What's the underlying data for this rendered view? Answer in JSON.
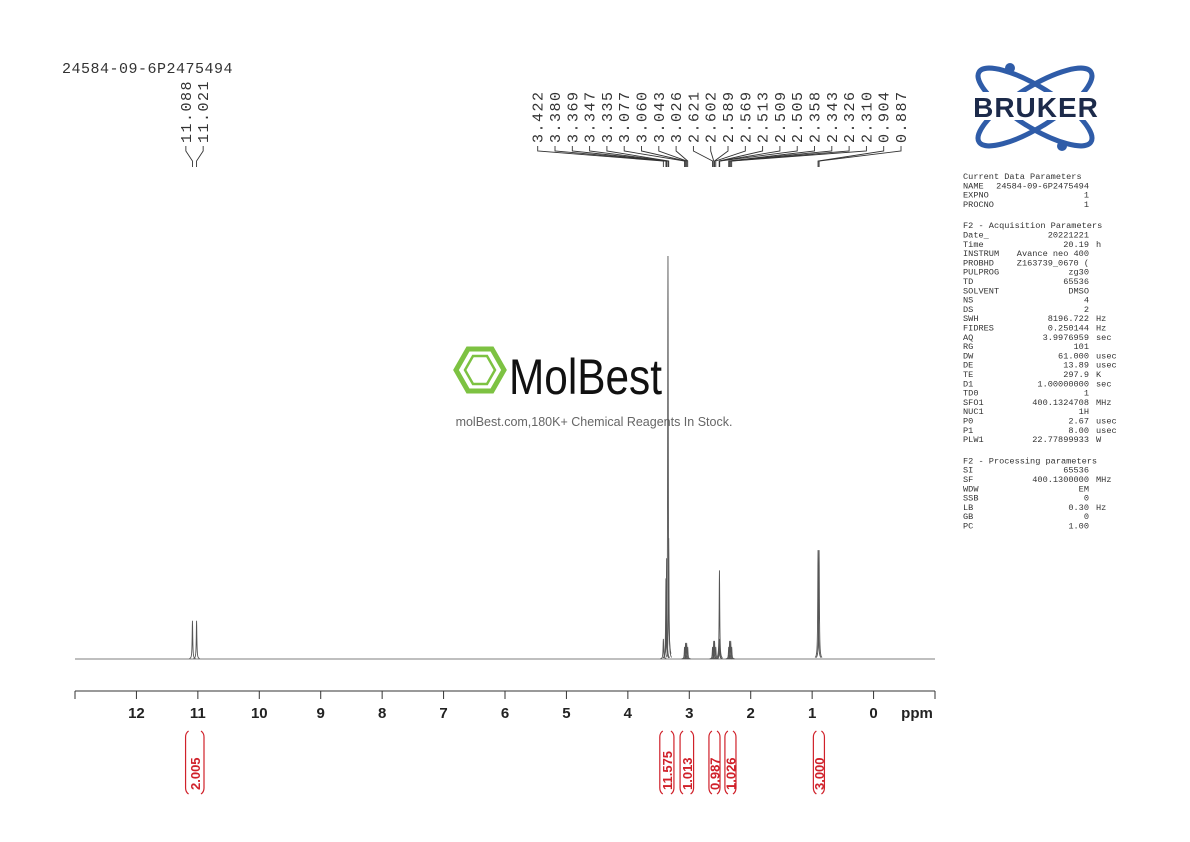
{
  "sample_name": "24584-09-6P2475494",
  "spectrum": {
    "xlim": [
      13,
      -1
    ],
    "xticks": [
      12,
      11,
      10,
      9,
      8,
      7,
      6,
      5,
      4,
      3,
      2,
      1,
      0
    ],
    "x_label": "ppm",
    "color": "#555555",
    "peaks": {
      "ppm": [
        11.088,
        11.021,
        3.422,
        3.38,
        3.369,
        3.347,
        3.335,
        3.077,
        3.06,
        3.043,
        3.026,
        2.621,
        2.602,
        2.589,
        2.569,
        2.513,
        2.509,
        2.505,
        2.358,
        2.343,
        2.326,
        2.31,
        0.904,
        0.887
      ],
      "labels": [
        "11.088",
        "11.021",
        "3.422",
        "3.380",
        "3.369",
        "3.347",
        "3.335",
        "3.077",
        "3.060",
        "3.043",
        "3.026",
        "2.621",
        "2.602",
        "2.589",
        "2.569",
        "2.513",
        "2.509",
        "2.505",
        "2.358",
        "2.343",
        "2.326",
        "2.310",
        "0.904",
        "0.887"
      ],
      "intensity": [
        9.5,
        9.5,
        5,
        20,
        25,
        100,
        30,
        3,
        4,
        4,
        3,
        3,
        4.5,
        4.5,
        3,
        5,
        22,
        5,
        3,
        4.5,
        4.5,
        3,
        27,
        27
      ]
    },
    "integrals": {
      "values": [
        2.005,
        11.575,
        1.013,
        0.987,
        1.026,
        3
      ],
      "labels": [
        "2.005",
        "11.575",
        "1.013",
        "0.987",
        "1.026",
        "3.000"
      ],
      "ranges": [
        [
          11.2,
          10.9
        ],
        [
          3.48,
          3.25
        ],
        [
          3.15,
          2.93
        ],
        [
          2.68,
          2.5
        ],
        [
          2.42,
          2.24
        ],
        [
          0.98,
          0.8
        ]
      ],
      "color": "#d0212a"
    }
  },
  "watermark": {
    "brand": "MolBest",
    "tagline": "molBest.com,180K+ Chemical Reagents In Stock."
  },
  "logo": {
    "text": "BRUKER"
  },
  "parameters": [
    {
      "title": "Current Data Parameters",
      "rows": [
        [
          "NAME",
          "24584-09-6P2475494"
        ],
        [
          "EXPNO",
          "1"
        ],
        [
          "PROCNO",
          "1"
        ]
      ]
    },
    {
      "title": "F2 - Acquisition Parameters",
      "rows": [
        [
          "Date_",
          "20221221"
        ],
        [
          "Time",
          "20.19",
          "h"
        ],
        [
          "INSTRUM",
          "Avance neo 400"
        ],
        [
          "PROBHD",
          "Z163739_0670 ("
        ],
        [
          "PULPROG",
          "zg30"
        ],
        [
          "TD",
          "65536"
        ],
        [
          "SOLVENT",
          "DMSO"
        ],
        [
          "NS",
          "4"
        ],
        [
          "DS",
          "2"
        ],
        [
          "SWH",
          "8196.722",
          "Hz"
        ],
        [
          "FIDRES",
          "0.250144",
          "Hz"
        ],
        [
          "AQ",
          "3.9976959",
          "sec"
        ],
        [
          "RG",
          "101"
        ],
        [
          "DW",
          "61.000",
          "usec"
        ],
        [
          "DE",
          "13.89",
          "usec"
        ],
        [
          "TE",
          "297.9",
          "K"
        ],
        [
          "D1",
          "1.00000000",
          "sec"
        ],
        [
          "TD0",
          "1"
        ],
        [
          "SFO1",
          "400.1324708",
          "MHz"
        ],
        [
          "NUC1",
          "1H"
        ],
        [
          "P0",
          "2.67",
          "usec"
        ],
        [
          "P1",
          "8.00",
          "usec"
        ],
        [
          "PLW1",
          "22.77899933",
          "W"
        ]
      ]
    },
    {
      "title": "F2 - Processing parameters",
      "rows": [
        [
          "SI",
          "65536"
        ],
        [
          "SF",
          "400.1300000",
          "MHz"
        ],
        [
          "WDW",
          "EM"
        ],
        [
          "SSB",
          "0"
        ],
        [
          "LB",
          "0.30",
          "Hz"
        ],
        [
          "GB",
          "0"
        ],
        [
          "PC",
          "1.00"
        ]
      ]
    }
  ]
}
